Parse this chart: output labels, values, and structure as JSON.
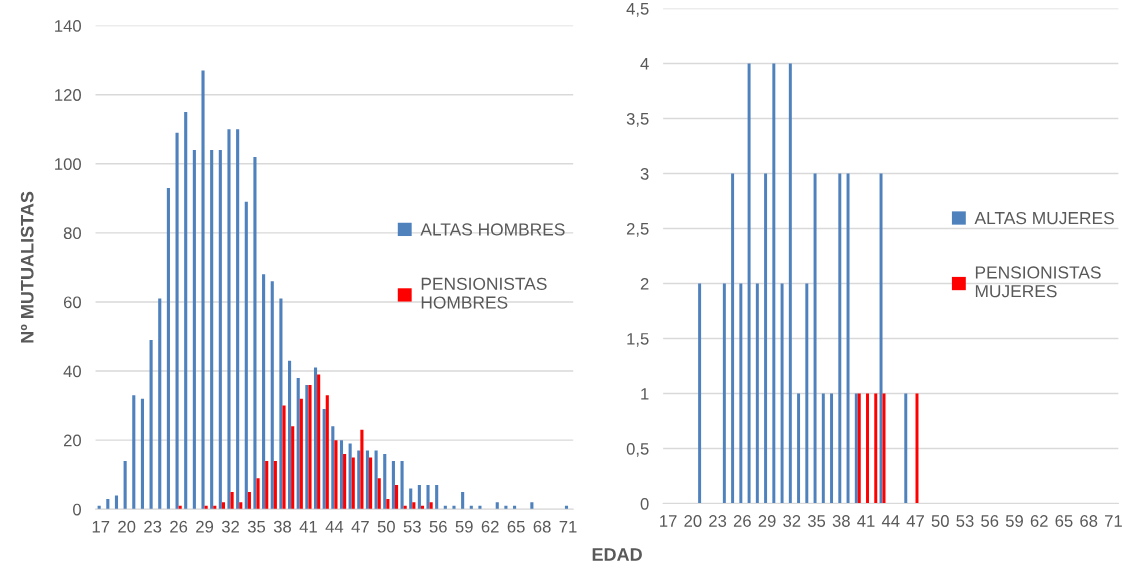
{
  "chart_data": [
    {
      "type": "bar",
      "ylabel": "Nº MUTUALISTAS",
      "xlabel": "EDAD",
      "categories": [
        "17",
        null,
        null,
        "20",
        null,
        null,
        "23",
        null,
        null,
        "26",
        null,
        null,
        "29",
        null,
        null,
        "32",
        null,
        null,
        "35",
        null,
        null,
        "38",
        null,
        null,
        "41",
        null,
        null,
        "44",
        null,
        null,
        "47",
        null,
        null,
        "50",
        null,
        null,
        "53",
        null,
        null,
        "56",
        null,
        null,
        "59",
        null,
        null,
        "62",
        null,
        null,
        "65",
        null,
        null,
        "68",
        null,
        null,
        "71"
      ],
      "series": [
        {
          "name": "ALTAS HOMBRES",
          "color": "#4f81bd",
          "values": [
            1,
            3,
            4,
            14,
            33,
            32,
            49,
            61,
            93,
            109,
            115,
            104,
            127,
            104,
            104,
            110,
            110,
            89,
            102,
            68,
            66,
            61,
            43,
            38,
            36,
            41,
            29,
            24,
            20,
            19,
            17,
            17,
            17,
            16,
            14,
            14,
            6,
            7,
            7,
            7,
            1,
            1,
            5,
            1,
            1,
            0,
            2,
            1,
            1,
            0,
            2,
            0,
            0,
            0,
            1
          ]
        },
        {
          "name": "PENSIONISTAS HOMBRES",
          "color": "#ff0000",
          "values": [
            0,
            0,
            0,
            0,
            0,
            0,
            0,
            0,
            0,
            1,
            0,
            0,
            1,
            1,
            2,
            5,
            2,
            5,
            9,
            14,
            14,
            30,
            24,
            32,
            36,
            39,
            33,
            20,
            16,
            15,
            23,
            15,
            9,
            3,
            7,
            1,
            2,
            1,
            2,
            0,
            0,
            0,
            0,
            0,
            0,
            0,
            0,
            0,
            0,
            0,
            0,
            0,
            0,
            0,
            0
          ]
        }
      ],
      "ylim": [
        0,
        140
      ],
      "yticks": [
        0,
        20,
        40,
        60,
        80,
        100,
        120,
        140
      ],
      "grid": "y",
      "legend": "right"
    },
    {
      "type": "bar",
      "categories": [
        "17",
        null,
        null,
        "20",
        null,
        null,
        "23",
        null,
        null,
        "26",
        null,
        null,
        "29",
        null,
        null,
        "32",
        null,
        null,
        "35",
        null,
        null,
        "38",
        null,
        null,
        "41",
        null,
        null,
        "44",
        null,
        null,
        "47",
        null,
        null,
        "50",
        null,
        null,
        "53",
        null,
        null,
        "56",
        null,
        null,
        "59",
        null,
        null,
        "62",
        null,
        null,
        "65",
        null,
        null,
        "68",
        null,
        null,
        "71"
      ],
      "series": [
        {
          "name": "ALTAS MUJERES",
          "color": "#4f81bd",
          "values": [
            0,
            0,
            0,
            0,
            2,
            0,
            0,
            2,
            3,
            2,
            4,
            2,
            3,
            4,
            2,
            4,
            1,
            2,
            3,
            1,
            1,
            3,
            3,
            1,
            0,
            0,
            3,
            0,
            0,
            1,
            0,
            0,
            0,
            0,
            0,
            0,
            0,
            0,
            0,
            0,
            0,
            0,
            0,
            0,
            0,
            0,
            0,
            0,
            0,
            0,
            0,
            0,
            0,
            0,
            0
          ]
        },
        {
          "name": "PENSIONISTAS MUJERES",
          "color": "#ff0000",
          "values": [
            0,
            0,
            0,
            0,
            0,
            0,
            0,
            0,
            0,
            0,
            0,
            0,
            0,
            0,
            0,
            0,
            0,
            0,
            0,
            0,
            0,
            0,
            0,
            1,
            1,
            1,
            1,
            0,
            0,
            0,
            1,
            0,
            0,
            0,
            0,
            0,
            0,
            0,
            0,
            0,
            0,
            0,
            0,
            0,
            0,
            0,
            0,
            0,
            0,
            0,
            0,
            0,
            0,
            0,
            0
          ]
        }
      ],
      "ylim": [
        0,
        4.5
      ],
      "yticks": [
        0,
        {
          "value": 0.5,
          "label": "0,5"
        },
        1,
        {
          "value": 1.5,
          "label": "1,5"
        },
        2,
        {
          "value": 2.5,
          "label": "2,5"
        },
        3,
        {
          "value": 3.5,
          "label": "3,5"
        },
        4,
        {
          "value": 4.5,
          "label": "4,5"
        }
      ],
      "grid": "y",
      "legend": "right"
    }
  ]
}
